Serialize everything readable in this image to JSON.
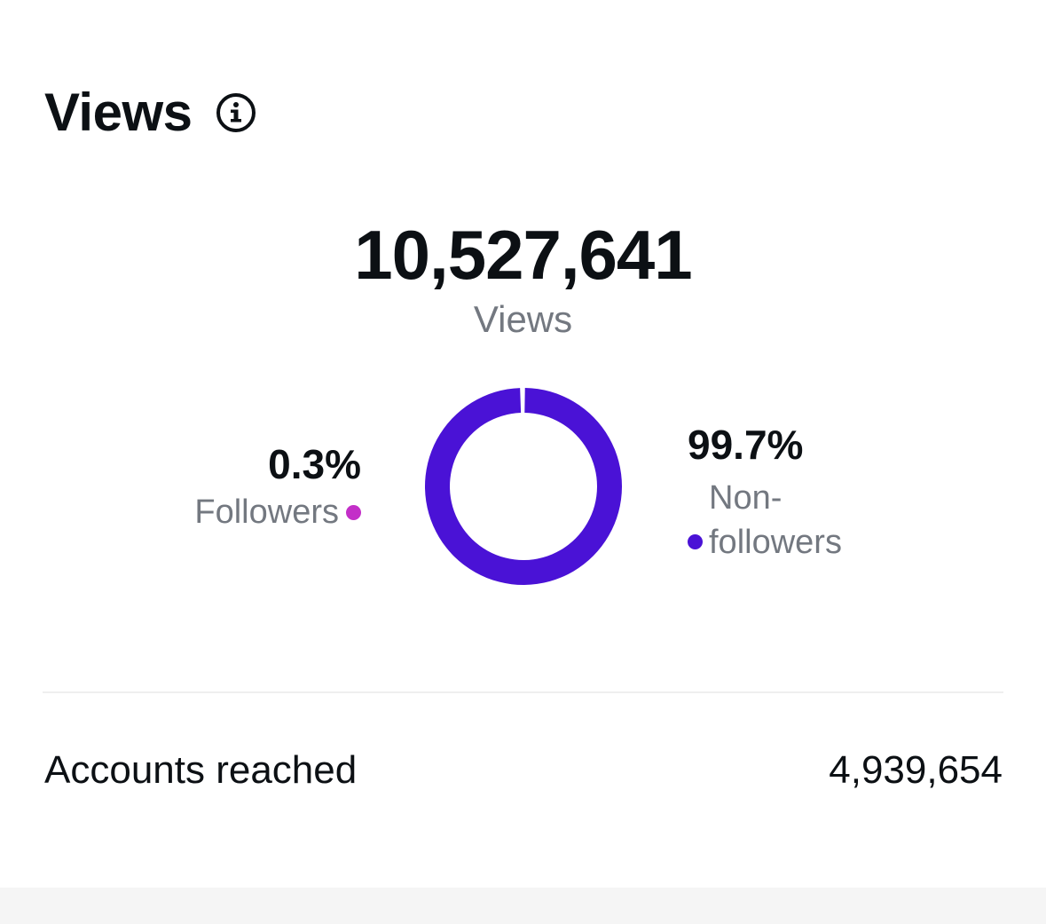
{
  "header": {
    "title": "Views",
    "info_icon": "info-circle-icon"
  },
  "total": {
    "value": "10,527,641",
    "label": "Views"
  },
  "breakdown": {
    "followers": {
      "percent": "0.3%",
      "label": "Followers",
      "color": "#c32fc8"
    },
    "non_followers": {
      "percent": "99.7%",
      "label_line1": "Non-",
      "label_line2": "followers",
      "color": "#4a12d6"
    }
  },
  "chart_data": {
    "type": "pie",
    "categories": [
      "Followers",
      "Non-followers"
    ],
    "values": [
      0.3,
      99.7
    ],
    "colors": [
      "#c32fc8",
      "#4a12d6"
    ]
  },
  "metrics": {
    "accounts_reached_label": "Accounts reached",
    "accounts_reached_value": "4,939,654"
  }
}
